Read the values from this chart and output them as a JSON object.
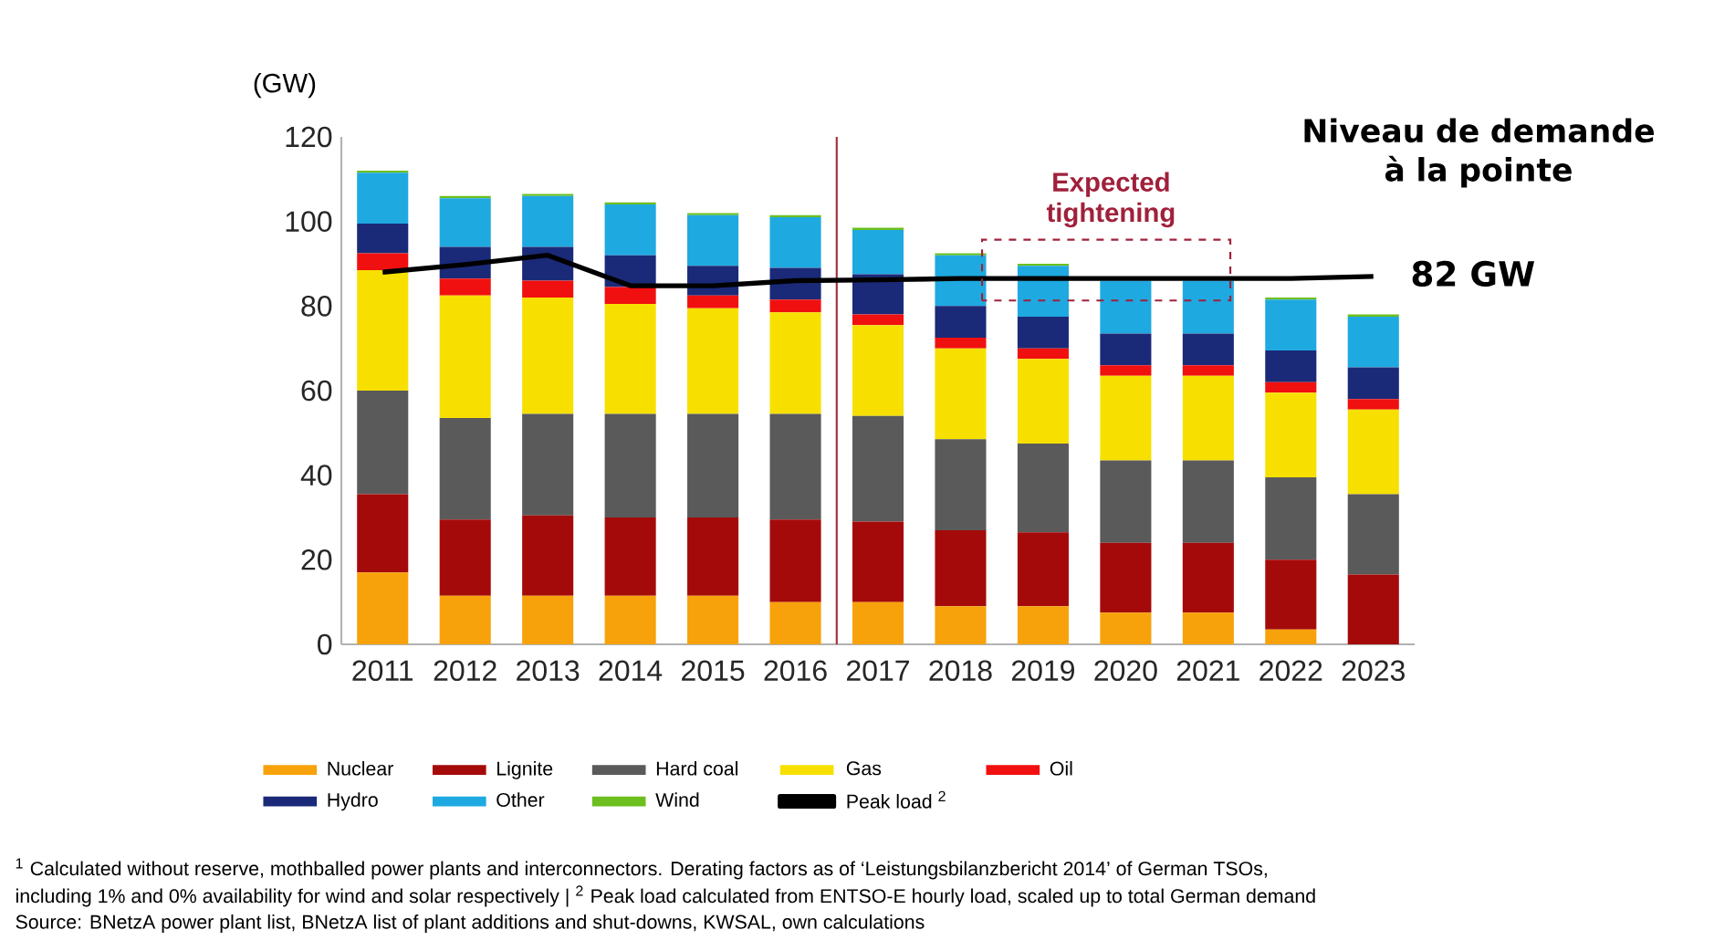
{
  "chart_data": {
    "type": "bar",
    "stacked": true,
    "ylabel": "(GW)",
    "x": [
      2011,
      2012,
      2013,
      2014,
      2015,
      2016,
      2017,
      2018,
      2019,
      2020,
      2021,
      2022,
      2023
    ],
    "xlim": [
      2010.5,
      2023.5
    ],
    "xticks": [
      2011,
      2012,
      2013,
      2014,
      2015,
      2016,
      2017,
      2018,
      2019,
      2020,
      2021,
      2022,
      2023
    ],
    "ref_lines": [
      {
        "axis": "x",
        "value": 2016.5,
        "color": "#a0303a"
      }
    ],
    "ylim": [
      0,
      120
    ],
    "yticks": [
      0,
      20,
      40,
      60,
      80,
      100,
      120
    ],
    "legend": "bottom",
    "series": [
      {
        "name": "Nuclear",
        "color": "#f7a20a",
        "values": [
          17,
          11.5,
          11.5,
          11.5,
          11.5,
          10,
          10,
          9,
          9,
          7.5,
          7.5,
          3.5,
          0
        ]
      },
      {
        "name": "Lignite",
        "color": "#a50a0a",
        "values": [
          18.5,
          18,
          19,
          18.5,
          18.5,
          19.5,
          19,
          18,
          17.5,
          16.5,
          16.5,
          16.5,
          16.5
        ]
      },
      {
        "name": "Hard coal",
        "color": "#5a5a5a",
        "values": [
          24.5,
          24,
          24,
          24.5,
          24.5,
          25,
          25,
          21.5,
          21,
          19.5,
          19.5,
          19.5,
          19
        ]
      },
      {
        "name": "Gas",
        "color": "#f7e000",
        "values": [
          28.5,
          29,
          27.5,
          26,
          25,
          24,
          21.5,
          21.5,
          20,
          20,
          20,
          20,
          20
        ]
      },
      {
        "name": "Oil",
        "color": "#f01010",
        "values": [
          4,
          4,
          4,
          4,
          3,
          3,
          2.5,
          2.5,
          2.5,
          2.5,
          2.5,
          2.5,
          2.5
        ]
      },
      {
        "name": "Hydro",
        "color": "#1a2a78",
        "values": [
          7,
          7.5,
          8,
          7.5,
          7,
          7.5,
          9.5,
          7.5,
          7.5,
          7.5,
          7.5,
          7.5,
          7.5
        ]
      },
      {
        "name": "Other",
        "color": "#1fa9e1",
        "values": [
          12,
          11.5,
          12,
          12,
          12,
          12,
          10.5,
          12,
          12,
          12.5,
          12.5,
          12,
          12
        ]
      },
      {
        "name": "Wind",
        "color": "#6cbf1e",
        "values": [
          0.5,
          0.5,
          0.5,
          0.5,
          0.5,
          0.5,
          0.5,
          0.5,
          0.5,
          null,
          null,
          0.5,
          0.5
        ]
      },
      {
        "name": "Peak load $^{2}$",
        "type": "line",
        "color": "#000000",
        "values": [
          88,
          89.8,
          92,
          84.8,
          84.8,
          86,
          86.2,
          86.5,
          86.5,
          86.5,
          86.5,
          86.5,
          87
        ]
      }
    ],
    "annotations": [
      "Niveau de demande à la pointe",
      "82 GW",
      {
        "text": "Expected tightening",
        "x": 2020,
        "y": 88.5
      },
      "$^{1}$ Calculated without reserve, mothballed power plants and interconnectors. Derating factors as of ‘Leistungsbilanzbericht 2014’ of German TSOs,",
      "including 1% and 0% availability for wind and solar respectively  |  $^{2}$ Peak load calculated from ENTSO-E hourly load, scaled up to total German demand",
      "Source: BNetzA power plant list, BNetzA list of plant additions and shut-downs, KWSAL, own calculations"
    ]
  }
}
